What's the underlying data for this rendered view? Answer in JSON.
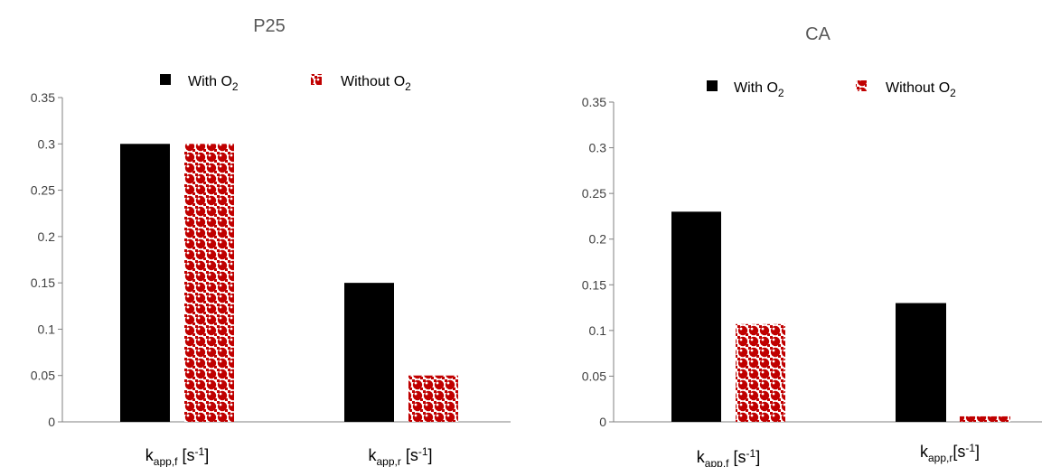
{
  "chart_data": [
    {
      "type": "bar",
      "title": "P25",
      "categories": [
        {
          "main": "k",
          "sub": "app,f",
          "unit_pre": " [s",
          "unit_sup": "-1",
          "unit_post": "]"
        },
        {
          "main": "k",
          "sub": "app,r",
          "unit_pre": " [s",
          "unit_sup": "-1",
          "unit_post": "]"
        }
      ],
      "series": [
        {
          "name": {
            "pre": "With O",
            "sub": "2"
          },
          "values": [
            0.3,
            0.15
          ],
          "color": "#000000",
          "pattern": "solid"
        },
        {
          "name": {
            "pre": "Without O",
            "sub": "2"
          },
          "values": [
            0.3,
            0.05
          ],
          "color": "#c00000",
          "pattern": "checker"
        }
      ],
      "ylim": [
        0,
        0.35
      ],
      "yticks": [
        "0",
        "0.05",
        "0.1",
        "0.15",
        "0.2",
        "0.25",
        "0.3",
        "0.35"
      ],
      "legend": "top",
      "grid": false
    },
    {
      "type": "bar",
      "title": "CA",
      "categories": [
        {
          "main": "k",
          "sub": "app,f",
          "unit_pre": " [s",
          "unit_sup": "-1",
          "unit_post": "]"
        },
        {
          "main": "k",
          "sub": "app,r",
          "unit_pre": "[s",
          "unit_sup": "-1",
          "unit_post": "]"
        }
      ],
      "series": [
        {
          "name": {
            "pre": "With O",
            "sub": "2"
          },
          "values": [
            0.23,
            0.13
          ],
          "color": "#000000",
          "pattern": "solid"
        },
        {
          "name": {
            "pre": "Without O",
            "sub": "2"
          },
          "values": [
            0.107,
            0.006
          ],
          "color": "#c00000",
          "pattern": "checker"
        }
      ],
      "ylim": [
        0,
        0.35
      ],
      "yticks": [
        "0",
        "0.05",
        "0.1",
        "0.15",
        "0.2",
        "0.25",
        "0.3",
        "0.35"
      ],
      "legend": "top",
      "grid": false
    }
  ]
}
